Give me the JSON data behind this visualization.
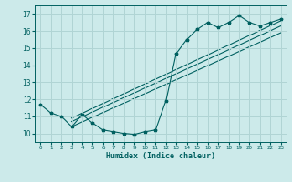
{
  "title": "",
  "xlabel": "Humidex (Indice chaleur)",
  "ylabel": "",
  "bg_color": "#cceaea",
  "grid_color": "#b0d4d4",
  "line_color": "#006060",
  "xlim": [
    -0.5,
    23.5
  ],
  "ylim": [
    9.5,
    17.5
  ],
  "yticks": [
    10,
    11,
    12,
    13,
    14,
    15,
    16,
    17
  ],
  "xticks": [
    0,
    1,
    2,
    3,
    4,
    5,
    6,
    7,
    8,
    9,
    10,
    11,
    12,
    13,
    14,
    15,
    16,
    17,
    18,
    19,
    20,
    21,
    22,
    23
  ],
  "main_line_x": [
    0,
    1,
    2,
    3,
    4,
    5,
    6,
    7,
    8,
    9,
    10,
    11,
    12,
    13,
    14,
    15,
    16,
    17,
    18,
    19,
    20,
    21,
    22,
    23
  ],
  "main_line_y": [
    11.7,
    11.2,
    11.0,
    10.4,
    11.1,
    10.6,
    10.2,
    10.1,
    10.0,
    9.95,
    10.1,
    10.2,
    11.9,
    14.7,
    15.5,
    16.1,
    16.5,
    16.2,
    16.5,
    16.9,
    16.5,
    16.3,
    16.5,
    16.7
  ],
  "trend1_x": [
    3,
    23
  ],
  "trend1_y": [
    10.9,
    16.6
  ],
  "trend2_x": [
    3,
    23
  ],
  "trend2_y": [
    10.7,
    16.3
  ],
  "trend3_x": [
    3,
    23
  ],
  "trend3_y": [
    10.4,
    15.9
  ]
}
